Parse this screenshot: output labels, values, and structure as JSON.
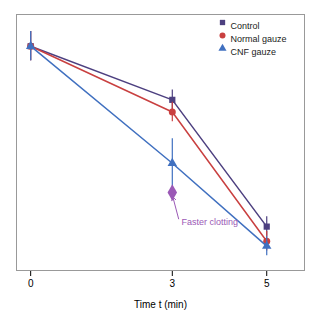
{
  "chart_data": {
    "type": "line",
    "xlabel": "Time t (min)",
    "x": [
      0,
      3,
      5
    ],
    "series": [
      {
        "name": "Control",
        "color": "#4d4080",
        "marker": "square",
        "values": [
          0.92,
          0.7,
          0.18
        ],
        "errors": [
          0.06,
          0.04,
          0.04
        ]
      },
      {
        "name": "Normal gauze",
        "color": "#c94040",
        "marker": "circle",
        "values": [
          0.92,
          0.65,
          0.12
        ],
        "errors": [
          0.06,
          0.04,
          0.04
        ]
      },
      {
        "name": "CNF gauze",
        "color": "#4070c0",
        "marker": "triangle",
        "values": [
          0.92,
          0.44,
          0.1
        ],
        "errors": [
          0.06,
          0.1,
          0.04
        ]
      }
    ],
    "xlim": [
      -0.3,
      5.8
    ],
    "ylim": [
      0,
      1.05
    ],
    "xticks": [
      0,
      3,
      5
    ],
    "tick_labels": "x",
    "grid": false,
    "legend": "upper right",
    "annotations": [
      {
        "text": "Faster clotting",
        "x": 3.15,
        "y": 0.2,
        "arrow_x": 3.0,
        "arrow_y": 0.31,
        "color": "#9b59b6"
      }
    ],
    "points": [
      {
        "x": 3.0,
        "y": 0.32,
        "marker": "diamond",
        "color": "#9b59b6"
      }
    ]
  }
}
